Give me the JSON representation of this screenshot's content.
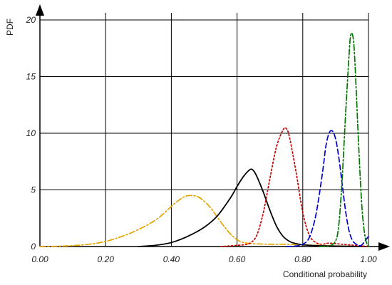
{
  "chart_data": {
    "type": "line",
    "title": "",
    "xlabel": "Conditional probability",
    "ylabel": "PDF",
    "xlim": [
      0.0,
      1.0
    ],
    "ylim": [
      0,
      20
    ],
    "xticks": [
      "0.00",
      "0.20",
      "0.40",
      "0.60",
      "0.80",
      "1.00"
    ],
    "yticks": [
      "0",
      "5",
      "10",
      "15",
      "20"
    ],
    "grid": true,
    "legend": "none",
    "series": [
      {
        "color": "#e6a400",
        "dash": "dash-dot",
        "x": [
          0.0,
          0.05,
          0.1,
          0.15,
          0.2,
          0.25,
          0.3,
          0.35,
          0.38,
          0.41,
          0.44,
          0.46,
          0.48,
          0.5,
          0.52,
          0.54,
          0.56,
          0.58,
          0.6,
          0.62,
          0.65,
          0.7,
          0.75,
          0.8,
          0.85,
          0.9,
          1.0
        ],
        "y": [
          0.0,
          0.02,
          0.08,
          0.2,
          0.45,
          0.9,
          1.5,
          2.3,
          3.0,
          3.8,
          4.4,
          4.5,
          4.4,
          4.0,
          3.4,
          2.6,
          1.8,
          1.1,
          0.6,
          0.35,
          0.25,
          0.2,
          0.2,
          0.15,
          0.1,
          0.05,
          0.0
        ]
      },
      {
        "color": "#000000",
        "dash": "solid",
        "x": [
          0.3,
          0.35,
          0.4,
          0.45,
          0.5,
          0.54,
          0.58,
          0.6,
          0.62,
          0.64,
          0.65,
          0.66,
          0.68,
          0.7,
          0.72,
          0.74,
          0.76,
          0.78,
          0.8,
          0.84,
          0.88,
          0.92,
          0.96,
          1.0
        ],
        "y": [
          0.0,
          0.1,
          0.35,
          0.9,
          1.7,
          2.7,
          4.3,
          5.3,
          6.2,
          6.8,
          6.7,
          6.2,
          4.8,
          3.2,
          1.8,
          0.9,
          0.45,
          0.25,
          0.15,
          0.08,
          0.05,
          0.03,
          0.01,
          0.0
        ]
      },
      {
        "color": "#cc0000",
        "dash": "dotted",
        "x": [
          0.55,
          0.6,
          0.62,
          0.64,
          0.66,
          0.68,
          0.7,
          0.72,
          0.74,
          0.75,
          0.76,
          0.78,
          0.8,
          0.82,
          0.84,
          0.86,
          0.88,
          0.92,
          0.96,
          1.0
        ],
        "y": [
          0.0,
          0.1,
          0.15,
          0.3,
          1.0,
          3.0,
          6.0,
          8.8,
          10.3,
          10.4,
          9.6,
          6.5,
          3.0,
          1.0,
          0.35,
          0.2,
          0.3,
          0.2,
          0.1,
          0.0
        ]
      },
      {
        "color": "#0000cc",
        "dash": "dashed",
        "x": [
          0.75,
          0.78,
          0.8,
          0.82,
          0.84,
          0.86,
          0.87,
          0.88,
          0.89,
          0.9,
          0.91,
          0.92,
          0.93,
          0.94,
          0.95,
          0.96,
          0.97,
          0.98,
          1.0
        ],
        "y": [
          0.0,
          0.05,
          0.2,
          0.8,
          2.8,
          6.5,
          8.8,
          10.0,
          10.2,
          9.5,
          7.8,
          5.5,
          3.2,
          1.5,
          0.6,
          0.25,
          0.1,
          0.15,
          0.9
        ]
      },
      {
        "color": "#007700",
        "dash": "dash-dot",
        "x": [
          0.85,
          0.88,
          0.9,
          0.91,
          0.92,
          0.93,
          0.94,
          0.945,
          0.95,
          0.955,
          0.96,
          0.97,
          0.98,
          0.99,
          1.0
        ],
        "y": [
          0.0,
          0.05,
          0.5,
          2.0,
          6.0,
          11.5,
          16.5,
          18.5,
          18.8,
          18.0,
          15.5,
          9.0,
          3.5,
          0.8,
          0.0
        ]
      }
    ]
  }
}
